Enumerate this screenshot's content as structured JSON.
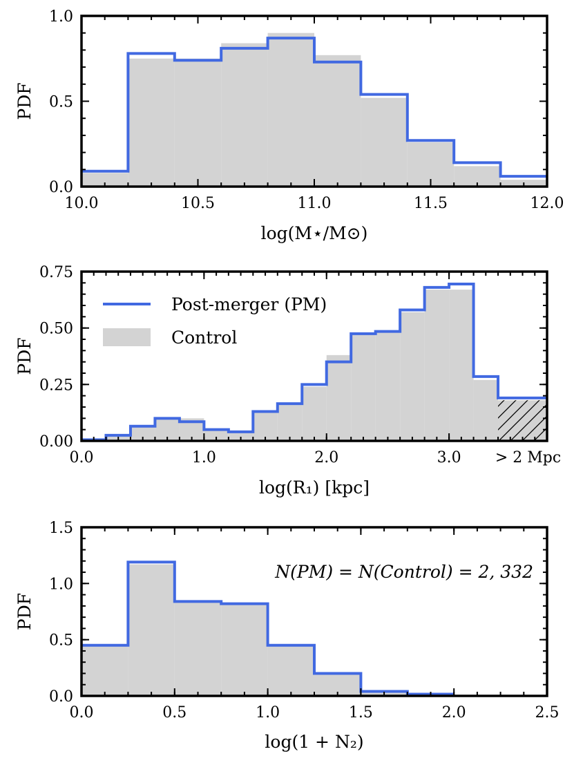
{
  "chart_data": [
    {
      "type": "histogram",
      "xlabel": "log(M⋆/M⊙)",
      "ylabel": "PDF",
      "xlim": [
        10.0,
        12.0
      ],
      "ylim": [
        0.0,
        1.0
      ],
      "xticks": [
        10.0,
        10.5,
        11.0,
        11.5,
        12.0
      ],
      "xtick_labels": [
        "10.0",
        "10.5",
        "11.0",
        "11.5",
        "12.0"
      ],
      "yticks": [
        0.0,
        0.5,
        1.0
      ],
      "ytick_labels": [
        "0.0",
        "0.5",
        "1.0"
      ],
      "bin_edges": [
        10.0,
        10.2,
        10.4,
        10.6,
        10.8,
        11.0,
        11.2,
        11.4,
        11.6,
        11.8,
        12.0
      ],
      "series": [
        {
          "name": "Post-merger (PM)",
          "style": "step",
          "color": "#4169e1",
          "values": [
            0.09,
            0.78,
            0.74,
            0.81,
            0.87,
            0.73,
            0.54,
            0.27,
            0.14,
            0.06
          ]
        },
        {
          "name": "Control",
          "style": "filled",
          "color": "#d3d3d3",
          "values": [
            0.08,
            0.75,
            0.75,
            0.84,
            0.9,
            0.77,
            0.52,
            0.26,
            0.12,
            0.04
          ]
        }
      ]
    },
    {
      "type": "histogram",
      "xlabel": "log(R₁) [kpc]",
      "ylabel": "PDF",
      "xlim": [
        0.0,
        3.8
      ],
      "ylim": [
        0.0,
        0.75
      ],
      "xticks": [
        0.0,
        1.0,
        2.0,
        3.0
      ],
      "xtick_labels": [
        "0.0",
        "1.0",
        "2.0",
        "3.0"
      ],
      "extra_xtick_label": "> 2 Mpc",
      "yticks": [
        0.0,
        0.25,
        0.5,
        0.75
      ],
      "ytick_labels": [
        "0.00",
        "0.25",
        "0.50",
        "0.75"
      ],
      "bin_edges": [
        0.0,
        0.2,
        0.4,
        0.6,
        0.8,
        1.0,
        1.2,
        1.4,
        1.6,
        1.8,
        2.0,
        2.2,
        2.4,
        2.6,
        2.8,
        3.0,
        3.2,
        3.4,
        3.8
      ],
      "series": [
        {
          "name": "Post-merger (PM)",
          "style": "step",
          "color": "#4169e1",
          "values": [
            0.005,
            0.025,
            0.065,
            0.1,
            0.085,
            0.05,
            0.04,
            0.13,
            0.165,
            0.25,
            0.35,
            0.475,
            0.485,
            0.58,
            0.68,
            0.695,
            0.285,
            0.19
          ]
        },
        {
          "name": "Control",
          "style": "filled",
          "color": "#d3d3d3",
          "values": [
            0.005,
            0.02,
            0.06,
            0.1,
            0.1,
            0.055,
            0.045,
            0.13,
            0.16,
            0.24,
            0.38,
            0.48,
            0.49,
            0.57,
            0.67,
            0.67,
            0.27,
            0.18
          ]
        }
      ],
      "hatched_bin": [
        3.4,
        3.8
      ],
      "legend": {
        "position": "upper-left",
        "entries": [
          {
            "label": "Post-merger (PM)",
            "kind": "line",
            "color": "#4169e1"
          },
          {
            "label": "Control",
            "kind": "patch",
            "color": "#d3d3d3"
          }
        ]
      }
    },
    {
      "type": "histogram",
      "xlabel": "log(1 + N₂)",
      "ylabel": "PDF",
      "xlim": [
        0.0,
        2.5
      ],
      "ylim": [
        0.0,
        1.5
      ],
      "xticks": [
        0.0,
        0.5,
        1.0,
        1.5,
        2.0,
        2.5
      ],
      "xtick_labels": [
        "0.0",
        "0.5",
        "1.0",
        "1.5",
        "2.0",
        "2.5"
      ],
      "yticks": [
        0.0,
        0.5,
        1.0,
        1.5
      ],
      "ytick_labels": [
        "0.0",
        "0.5",
        "1.0",
        "1.5"
      ],
      "bin_edges": [
        0.0,
        0.25,
        0.5,
        0.75,
        1.0,
        1.25,
        1.5,
        1.75,
        2.0
      ],
      "series": [
        {
          "name": "Post-merger (PM)",
          "style": "step",
          "color": "#4169e1",
          "values": [
            0.45,
            1.19,
            0.84,
            0.82,
            0.45,
            0.2,
            0.04,
            0.015
          ]
        },
        {
          "name": "Control",
          "style": "filled",
          "color": "#d3d3d3",
          "values": [
            0.46,
            1.17,
            0.83,
            0.83,
            0.44,
            0.19,
            0.04,
            0.015
          ]
        }
      ],
      "annotation": "N(PM) = N(Control) = 2, 332"
    }
  ]
}
